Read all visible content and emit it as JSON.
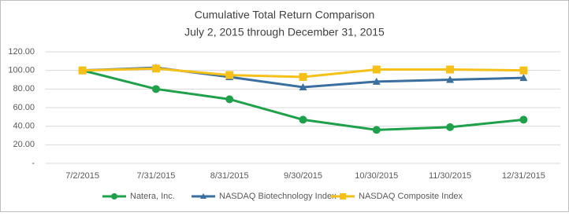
{
  "chart_data": {
    "type": "line",
    "title": "Cumulative Total Return  Comparison",
    "subtitle": "July 2, 2015 through December 31, 2015",
    "categories": [
      "7/2/2015",
      "7/31/2015",
      "8/31/2015",
      "9/30/2015",
      "10/30/2015",
      "11/30/2015",
      "12/31/2015"
    ],
    "series": [
      {
        "name": "Natera, Inc.",
        "color": "#1fa04a",
        "marker": "circle",
        "values": [
          100,
          80,
          69,
          47,
          36,
          39,
          47
        ]
      },
      {
        "name": "NASDAQ Biotechnology Index",
        "color": "#3a6fa0",
        "marker": "triangle",
        "values": [
          100,
          103,
          93,
          82,
          88,
          90,
          92
        ]
      },
      {
        "name": "NASDAQ Composite Index",
        "color": "#f5c118",
        "marker": "square",
        "values": [
          100,
          102,
          95,
          93,
          101,
          101,
          100
        ]
      }
    ],
    "ylim": [
      0,
      120
    ],
    "yticks": [
      {
        "value": 0,
        "label": "-"
      },
      {
        "value": 20,
        "label": "20.00"
      },
      {
        "value": 40,
        "label": "40.00"
      },
      {
        "value": 60,
        "label": "60.00"
      },
      {
        "value": 80,
        "label": "80.00"
      },
      {
        "value": 100,
        "label": "100.00"
      },
      {
        "value": 120,
        "label": "120.00"
      }
    ],
    "grid": true,
    "legend": "bottom"
  }
}
